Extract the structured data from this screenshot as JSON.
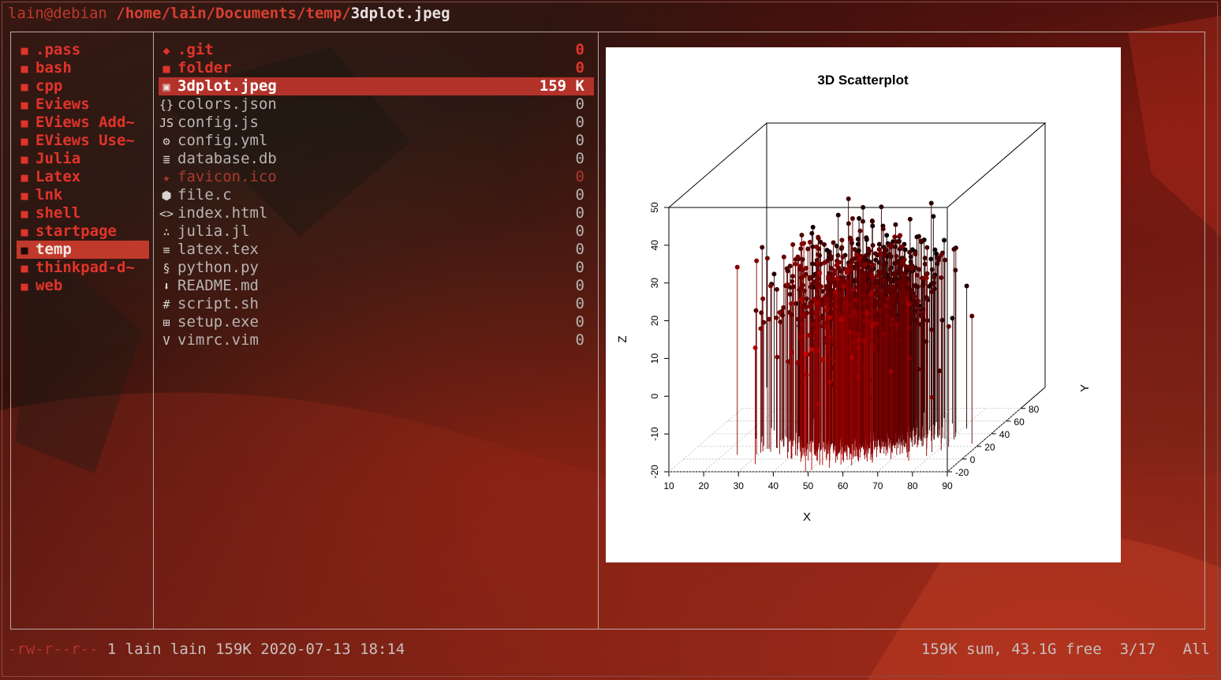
{
  "titlebar": {
    "user": "lain@debian",
    "path": "/home/lain/Documents/temp/",
    "file": "3dplot.jpeg"
  },
  "parent_dirs": [
    {
      "name": ".pass"
    },
    {
      "name": "bash"
    },
    {
      "name": "cpp"
    },
    {
      "name": "Eviews"
    },
    {
      "name": "EViews Add~"
    },
    {
      "name": "EViews Use~"
    },
    {
      "name": "Julia"
    },
    {
      "name": "Latex"
    },
    {
      "name": "lnk"
    },
    {
      "name": "shell"
    },
    {
      "name": "startpage"
    },
    {
      "name": "temp",
      "selected": true
    },
    {
      "name": "thinkpad-d~"
    },
    {
      "name": "web"
    }
  ],
  "files": [
    {
      "name": ".git",
      "size": "0",
      "icon": "git-icon",
      "glyph": "◆",
      "kind": "dir"
    },
    {
      "name": "folder",
      "size": "0",
      "icon": "folder-icon",
      "glyph": "■",
      "kind": "dir"
    },
    {
      "name": "3dplot.jpeg",
      "size": "159 K",
      "icon": "image-icon",
      "glyph": "▣",
      "kind": "sel"
    },
    {
      "name": "colors.json",
      "size": "0",
      "icon": "json-icon",
      "glyph": "{}",
      "kind": "file"
    },
    {
      "name": "config.js",
      "size": "0",
      "icon": "javascript-icon",
      "glyph": "JS",
      "kind": "file"
    },
    {
      "name": "config.yml",
      "size": "0",
      "icon": "gear-icon",
      "glyph": "⚙",
      "kind": "file"
    },
    {
      "name": "database.db",
      "size": "0",
      "icon": "database-icon",
      "glyph": "≣",
      "kind": "file"
    },
    {
      "name": "favicon.ico",
      "size": "0",
      "icon": "star-icon",
      "glyph": "★",
      "kind": "dim"
    },
    {
      "name": "file.c",
      "size": "0",
      "icon": "c-language-icon",
      "glyph": "⬢",
      "kind": "file"
    },
    {
      "name": "index.html",
      "size": "0",
      "icon": "code-icon",
      "glyph": "<>",
      "kind": "file"
    },
    {
      "name": "julia.jl",
      "size": "0",
      "icon": "julia-icon",
      "glyph": "∴",
      "kind": "file"
    },
    {
      "name": "latex.tex",
      "size": "0",
      "icon": "text-lines-icon",
      "glyph": "≡",
      "kind": "file"
    },
    {
      "name": "python.py",
      "size": "0",
      "icon": "python-icon",
      "glyph": "§",
      "kind": "file"
    },
    {
      "name": "README.md",
      "size": "0",
      "icon": "download-arrow-icon",
      "glyph": "⬇",
      "kind": "file"
    },
    {
      "name": "script.sh",
      "size": "0",
      "icon": "hash-icon",
      "glyph": "#",
      "kind": "file"
    },
    {
      "name": "setup.exe",
      "size": "0",
      "icon": "windows-icon",
      "glyph": "⊞",
      "kind": "file"
    },
    {
      "name": "vimrc.vim",
      "size": "0",
      "icon": "vim-icon",
      "glyph": "V",
      "kind": "file"
    }
  ],
  "preview": {
    "chart_data": {
      "type": "scatter",
      "title": "3D Scatterplot",
      "xlabel": "X",
      "ylabel": "Y",
      "zlabel": "Z",
      "xticks": [
        "10",
        "20",
        "30",
        "40",
        "50",
        "60",
        "70",
        "80",
        "90"
      ],
      "yticks": [
        "-20",
        "0",
        "20",
        "40",
        "60",
        "80"
      ],
      "zticks": [
        "-20",
        "-10",
        "0",
        "10",
        "20",
        "30",
        "40",
        "50"
      ],
      "xlim": [
        10,
        90
      ],
      "ylim": [
        -20,
        80
      ],
      "zlim": [
        -20,
        50
      ],
      "style": "vertical drop lines from each point to z = -20, colour graded from red (near, low y) to black (far, high y)",
      "point_color_near": "#cc0000",
      "point_color_far": "#000000",
      "n_points_approx": 1000,
      "x_distribution": {
        "mean": 55,
        "sd": 10
      },
      "y_distribution": {
        "mean": 30,
        "sd": 15
      },
      "z_distribution": {
        "mean": 18,
        "sd": 8
      }
    }
  },
  "status": {
    "permissions": "-rw-r--r--",
    "details": "1 lain lain 159K 2020-07-13 18:14",
    "summary": "159K sum, 43.1G free",
    "position": "3/17",
    "scroll": "All"
  }
}
